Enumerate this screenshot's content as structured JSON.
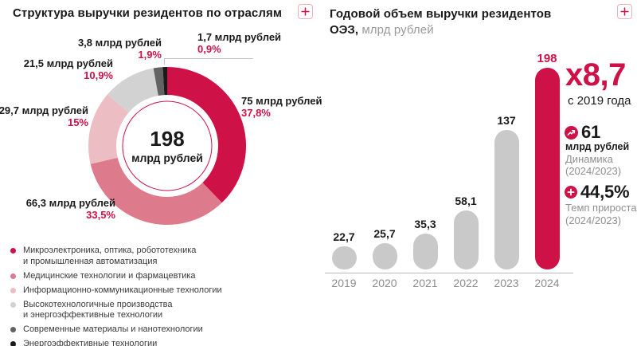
{
  "accent_color": "#ce1146",
  "left_panel": {
    "title": "Структура выручки резидентов по отраслям",
    "expand_button": "plus",
    "center": {
      "value": "198",
      "unit": "млрд рублей"
    },
    "legend": [
      {
        "lines": [
          "Микроэлектроника, оптика, робототехника",
          "и промышленная автоматизация"
        ]
      },
      {
        "lines": [
          "Медицинские технологии и фармацевтика"
        ]
      },
      {
        "lines": [
          "Информационно-коммуникационные технологии"
        ]
      },
      {
        "lines": [
          "Высокотехнологичные производства",
          "и энергоэффективные технологии"
        ]
      },
      {
        "lines": [
          "Современные материалы и нанотехнологии"
        ]
      },
      {
        "lines": [
          "Энергоэффективные технологии"
        ]
      }
    ]
  },
  "right_panel": {
    "title_line1": "Годовой объем выручки резидентов",
    "title_bold2": "ОЭЗ,",
    "title_unit": " млрд рублей",
    "multiplier": "x8,7",
    "multiplier_caption": "с 2019 года",
    "stats": [
      {
        "icon": "trend-up-icon",
        "value": "61",
        "unit": "млрд рублей",
        "caption1": "Динамика",
        "caption2": "(2024/2023)"
      },
      {
        "icon": "plus-circle-icon",
        "value": "44,5%",
        "unit": "",
        "caption1": "Темп прироста",
        "caption2": "(2024/2023)"
      }
    ]
  },
  "chart_data": [
    {
      "type": "pie",
      "subtype": "donut",
      "title": "Структура выручки резидентов по отраслям",
      "center_label": {
        "value": "198",
        "unit": "млрд рублей"
      },
      "segments": [
        {
          "label": "Микроэлектроника, оптика, робототехника и промышленная автоматизация",
          "value_label": "75 млрд рублей",
          "pct_label": "37,8%",
          "value": 75,
          "pct": 37.8,
          "color": "#ce1146"
        },
        {
          "label": "Медицинские технологии и фармацевтика",
          "value_label": "66,3 млрд рублей",
          "pct_label": "33,5%",
          "value": 66.3,
          "pct": 33.5,
          "color": "#dd7a8b"
        },
        {
          "label": "Информационно-коммуникационные технологии",
          "value_label": "29,7 млрд рублей",
          "pct_label": "15%",
          "value": 29.7,
          "pct": 15,
          "color": "#ecbdc2"
        },
        {
          "label": "Высокотехнологичные производства и энергоэффективные технологии",
          "value_label": "21,5 млрд рублей",
          "pct_label": "10,9%",
          "value": 21.5,
          "pct": 10.9,
          "color": "#d2d2d2"
        },
        {
          "label": "Современные материалы и нанотехнологии",
          "value_label": "3,8 млрд рублей",
          "pct_label": "1,9%",
          "value": 3.8,
          "pct": 1.9,
          "color": "#636363"
        },
        {
          "label": "Энергоэффективные технологии",
          "value_label": "1,7 млрд рублей",
          "pct_label": "0,9%",
          "value": 1.7,
          "pct": 0.9,
          "color": "#1b1b1b"
        }
      ],
      "total_label": "198 млрд рублей"
    },
    {
      "type": "bar",
      "title": "Годовой объем выручки резидентов ОЭЗ, млрд рублей",
      "categories": [
        "2019",
        "2020",
        "2021",
        "2022",
        "2023",
        "2024"
      ],
      "values": [
        22.7,
        25.7,
        35.3,
        58.1,
        137,
        198
      ],
      "value_labels": [
        "22,7",
        "25,7",
        "35,3",
        "58,1",
        "137",
        "198"
      ],
      "highlight_index": 5,
      "bar_color": "#c9c9c9",
      "highlight_color": "#ce1146",
      "ylim": [
        0,
        210
      ],
      "grid": false,
      "annotations": [
        "x8,7 с 2019 года",
        "61 млрд рублей Динамика (2024/2023)",
        "+44,5% Темп прироста (2024/2023)"
      ]
    }
  ]
}
